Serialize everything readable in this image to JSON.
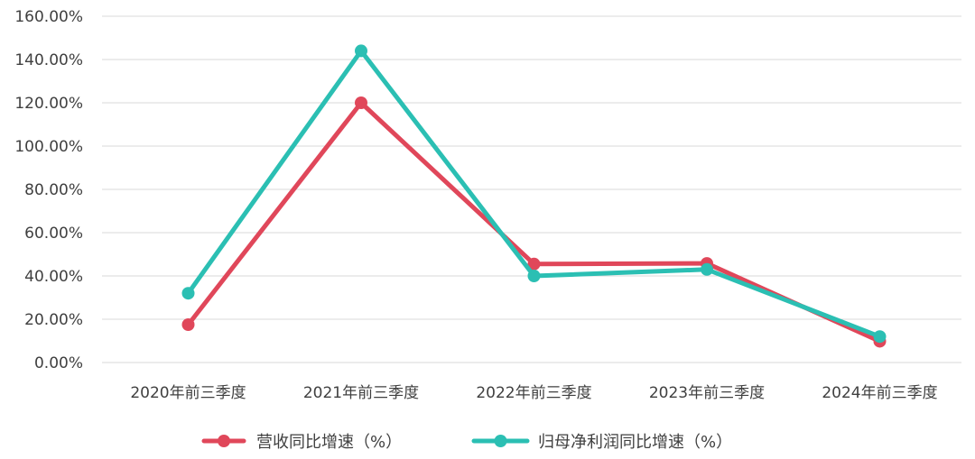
{
  "chart_data": {
    "type": "line",
    "title": "",
    "xlabel": "",
    "ylabel": "",
    "categories": [
      "2020年前三季度",
      "2021年前三季度",
      "2022年前三季度",
      "2023年前三季度",
      "2024年前三季度"
    ],
    "ylim": [
      0,
      160
    ],
    "yticks": [
      0,
      20,
      40,
      60,
      80,
      100,
      120,
      140,
      160
    ],
    "y_format": "percent_2dp",
    "grid": true,
    "legend_position": "bottom",
    "series": [
      {
        "name": "营收同比增速（%）",
        "color": "#e0475a",
        "values": [
          17.5,
          120,
          45.5,
          45.8,
          9.8
        ]
      },
      {
        "name": "归母净利润同比增速（%）",
        "color": "#2bbfb3",
        "values": [
          32,
          144,
          40,
          43,
          12
        ]
      }
    ]
  }
}
